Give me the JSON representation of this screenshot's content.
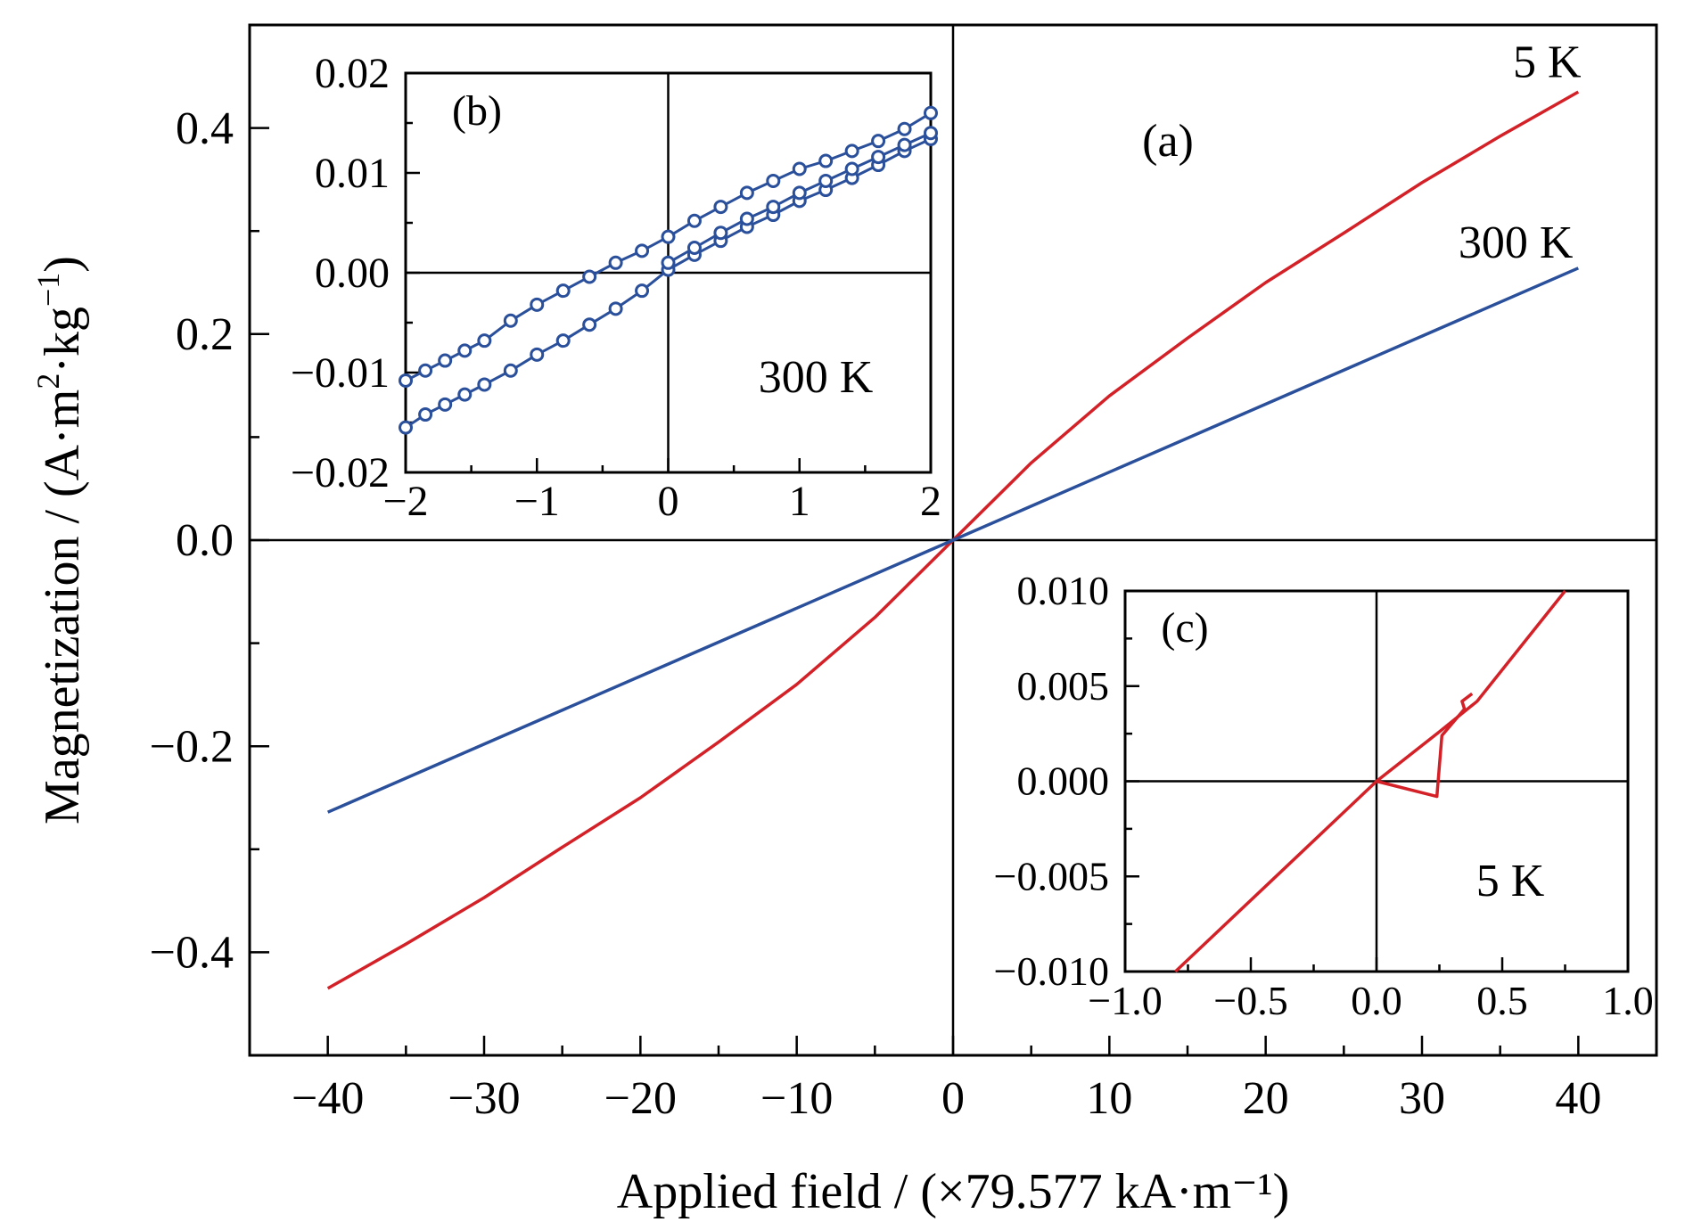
{
  "chart_data": [
    {
      "id": "a",
      "type": "line",
      "panel_label": "(a)",
      "xlabel": "Applied field / (×79.577 kA·m⁻¹)",
      "ylabel_main": "Magnetization / (A·m",
      "ylabel_sup1": "2",
      "ylabel_mid": "·kg",
      "ylabel_sup2": "−1",
      "ylabel_end": ")",
      "xlim": [
        -45,
        45
      ],
      "ylim": [
        -0.5,
        0.5
      ],
      "xticks": [
        -40,
        -30,
        -20,
        -10,
        0,
        10,
        20,
        30,
        40
      ],
      "xtick_labels": [
        "−40",
        "−30",
        "−20",
        "−10",
        "0",
        "10",
        "20",
        "30",
        "40"
      ],
      "yticks": [
        -0.4,
        -0.2,
        0.0,
        0.2,
        0.4
      ],
      "ytick_labels": [
        "−0.4",
        "−0.2",
        "0.0",
        "0.2",
        "0.4"
      ],
      "series": [
        {
          "name": "5 K",
          "color": "#d42027",
          "x": [
            -40,
            -35,
            -30,
            -25,
            -20,
            -15,
            -10,
            -5,
            0,
            5,
            10,
            15,
            20,
            25,
            30,
            35,
            40
          ],
          "y": [
            -0.435,
            -0.392,
            -0.347,
            -0.298,
            -0.25,
            -0.196,
            -0.14,
            -0.075,
            0.0,
            0.075,
            0.14,
            0.196,
            0.25,
            0.298,
            0.347,
            0.392,
            0.435
          ]
        },
        {
          "name": "300 K",
          "color": "#2a4f9b",
          "x": [
            -40,
            -30,
            -20,
            -10,
            0,
            10,
            20,
            30,
            40
          ],
          "y": [
            -0.264,
            -0.198,
            -0.132,
            -0.066,
            0.0,
            0.066,
            0.132,
            0.198,
            0.264
          ]
        }
      ],
      "annotations": [
        {
          "text": "5 K",
          "x": 38,
          "y": 0.465
        },
        {
          "text": "300 K",
          "x": 36,
          "y": 0.29
        }
      ]
    },
    {
      "id": "b",
      "type": "line",
      "panel_label": "(b)",
      "annotation": "300 K",
      "xlim": [
        -2,
        2
      ],
      "ylim": [
        -0.02,
        0.02
      ],
      "xticks": [
        -2,
        -1,
        0,
        1,
        2
      ],
      "xtick_labels": [
        "−2",
        "−1",
        "0",
        "1",
        "2"
      ],
      "yticks": [
        -0.02,
        -0.01,
        0.0,
        0.01,
        0.02
      ],
      "ytick_labels": [
        "−0.02",
        "−0.01",
        "0.00",
        "0.01",
        "0.02"
      ],
      "series": [
        {
          "name": "300 K",
          "color": "#2a4f9b",
          "marker": "circle-open",
          "branches": [
            {
              "x": [
                -2.0,
                -1.85,
                -1.7,
                -1.55,
                -1.4,
                -1.2,
                -1.0,
                -0.8,
                -0.6,
                -0.4,
                -0.2,
                0.0,
                0.2,
                0.4,
                0.6,
                0.8,
                1.0,
                1.2,
                1.4,
                1.6,
                1.8,
                2.0
              ],
              "y": [
                -0.0155,
                -0.0142,
                -0.0132,
                -0.0122,
                -0.0112,
                -0.0098,
                -0.0082,
                -0.0068,
                -0.0052,
                -0.0036,
                -0.0018,
                0.0003,
                0.0018,
                0.0032,
                0.0046,
                0.0058,
                0.0072,
                0.0083,
                0.0095,
                0.0108,
                0.0122,
                0.0134
              ]
            },
            {
              "x": [
                -2.0,
                -1.85,
                -1.7,
                -1.55,
                -1.4,
                -1.2,
                -1.0,
                -0.8,
                -0.6,
                -0.4,
                -0.2,
                0.0,
                0.2,
                0.4,
                0.6,
                0.8,
                1.0,
                1.2,
                1.4,
                1.6,
                1.8,
                2.0
              ],
              "y": [
                -0.0108,
                -0.0098,
                -0.0088,
                -0.0078,
                -0.0068,
                -0.0048,
                -0.0032,
                -0.0018,
                -0.0004,
                0.001,
                0.0022,
                0.0036,
                0.0052,
                0.0066,
                0.008,
                0.0092,
                0.0104,
                0.0112,
                0.0122,
                0.0132,
                0.0144,
                0.016
              ]
            },
            {
              "x": [
                0.0,
                0.2,
                0.4,
                0.6,
                0.8,
                1.0,
                1.2,
                1.4,
                1.6,
                1.8,
                2.0
              ],
              "y": [
                0.001,
                0.0025,
                0.004,
                0.0054,
                0.0066,
                0.008,
                0.0092,
                0.0104,
                0.0116,
                0.0128,
                0.014
              ]
            }
          ]
        }
      ]
    },
    {
      "id": "c",
      "type": "line",
      "panel_label": "(c)",
      "annotation": "5 K",
      "xlim": [
        -1.0,
        1.0
      ],
      "ylim": [
        -0.01,
        0.01
      ],
      "xticks": [
        -1.0,
        -0.5,
        0.0,
        0.5,
        1.0
      ],
      "xtick_labels": [
        "−1.0",
        "−0.5",
        "0.0",
        "0.5",
        "1.0"
      ],
      "yticks": [
        -0.01,
        -0.005,
        0.0,
        0.005,
        0.01
      ],
      "ytick_labels": [
        "−0.010",
        "−0.005",
        "0.000",
        "0.005",
        "0.010"
      ],
      "series": [
        {
          "name": "5 K",
          "color": "#d42027",
          "x": [
            -0.8,
            -0.4,
            0.0,
            0.25,
            0.4,
            0.75
          ],
          "y": [
            -0.01,
            -0.005,
            0.0,
            0.0026,
            0.0042,
            0.01
          ]
        },
        {
          "name": "5 K glitch",
          "color": "#d42027",
          "x": [
            0.0,
            0.24,
            0.26,
            0.35,
            0.34,
            0.38
          ],
          "y": [
            0.0,
            -0.0008,
            0.0024,
            0.0038,
            0.0042,
            0.0046
          ]
        }
      ]
    }
  ]
}
